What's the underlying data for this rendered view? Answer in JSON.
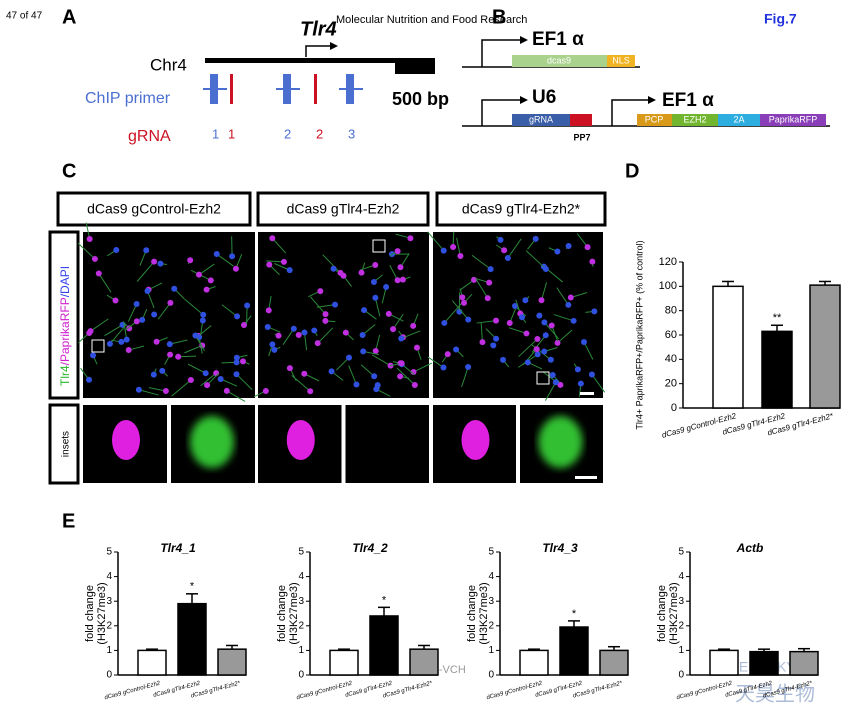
{
  "header": {
    "page": "47 of 47",
    "journal": "Molecular Nutrition and Food Research",
    "figure": "Fig.7"
  },
  "panel_a": {
    "letter": "A",
    "gene": "Tlr4",
    "chromosome": "Chr4",
    "primer_label": "ChIP primer",
    "grna_label": "gRNA",
    "scale": "500 bp",
    "numbers": [
      "1",
      "1",
      "2",
      "2",
      "3"
    ]
  },
  "panel_b": {
    "letter": "B",
    "promoter1": "EF1 α",
    "elements1": [
      "dcas9",
      "NLS"
    ],
    "promoter2": "U6",
    "elements2": [
      "gRNA",
      "PP7"
    ],
    "promoter3": "EF1 α",
    "elements3": [
      "PCP",
      "EZH2",
      "2A",
      "PaprikaRFP"
    ]
  },
  "panel_c": {
    "letter": "C",
    "conditions": [
      "dCas9 gControl-Ezh2",
      "dCas9 gTlr4-Ezh2",
      "dCas9 gTlr4-Ezh2*"
    ],
    "stain": [
      "Tlr4",
      "/PaprikaRFP",
      "/DAPI"
    ],
    "insets": "insets"
  },
  "panel_e": {
    "letter": "E"
  },
  "watermarks": [
    "Wiley-VCH",
    "GENESKY",
    "天昊生物"
  ],
  "chart_data": [
    {
      "type": "bar",
      "panel": "D",
      "ylabel": "Tlr4+ PaprikaRFP+/PaprikaRFP+ (% of control)",
      "categories": [
        "dCas9 gControl-Ezh2",
        "dCas9 gTlr4-Ezh2",
        "dCas9 gTlr4-Ezh2*"
      ],
      "values": [
        100,
        63,
        101
      ],
      "errors": [
        4,
        5,
        3
      ],
      "colors": [
        "#ffffff",
        "#000000",
        "#999999"
      ],
      "significance": [
        null,
        "**",
        null
      ],
      "ylim": [
        0,
        120
      ],
      "yticks": [
        0,
        20,
        40,
        60,
        80,
        100,
        120
      ]
    },
    {
      "type": "bar",
      "title": "Tlr4_1",
      "ylabel": [
        "fold change",
        "(H3K27me3)"
      ],
      "categories": [
        "dCas9 gControl-Ezh2",
        "dCas9 gTlr4-Ezh2",
        "dCas9 gTlr4-Ezh2*"
      ],
      "values": [
        1,
        2.9,
        1.05
      ],
      "errors": [
        0.05,
        0.4,
        0.15
      ],
      "colors": [
        "#ffffff",
        "#000000",
        "#999999"
      ],
      "significance": [
        null,
        "*",
        null
      ],
      "ylim": [
        0,
        5
      ],
      "yticks": [
        0,
        1,
        2,
        3,
        4,
        5
      ]
    },
    {
      "type": "bar",
      "title": "Tlr4_2",
      "ylabel": [
        "fold change",
        "(H3K27me3)"
      ],
      "categories": [
        "dCas9 gControl-Ezh2",
        "dCas9 gTlr4-Ezh2",
        "dCas9 gTlr4-Ezh2*"
      ],
      "values": [
        1,
        2.4,
        1.05
      ],
      "errors": [
        0.05,
        0.35,
        0.15
      ],
      "colors": [
        "#ffffff",
        "#000000",
        "#999999"
      ],
      "significance": [
        null,
        "*",
        null
      ],
      "ylim": [
        0,
        5
      ],
      "yticks": [
        0,
        1,
        2,
        3,
        4,
        5
      ]
    },
    {
      "type": "bar",
      "title": "Tlr4_3",
      "ylabel": [
        "fold change",
        "(H3K27me3)"
      ],
      "categories": [
        "dCas9 gControl-Ezh2",
        "dCas9 gTlr4-Ezh2",
        "dCas9 gTlr4-Ezh2*"
      ],
      "values": [
        1,
        1.95,
        1.0
      ],
      "errors": [
        0.05,
        0.25,
        0.15
      ],
      "colors": [
        "#ffffff",
        "#000000",
        "#999999"
      ],
      "significance": [
        null,
        "*",
        null
      ],
      "ylim": [
        0,
        5
      ],
      "yticks": [
        0,
        1,
        2,
        3,
        4,
        5
      ]
    },
    {
      "type": "bar",
      "title": "Actb",
      "ylabel": [
        "fold change",
        "(H3K27me3)"
      ],
      "categories": [
        "dCas9 gControl-Ezh2",
        "dCas9 gTlr4-Ezh2",
        "dCas9 gTlr4-Ezh2*"
      ],
      "values": [
        1,
        0.95,
        0.95
      ],
      "errors": [
        0.05,
        0.1,
        0.12
      ],
      "colors": [
        "#ffffff",
        "#000000",
        "#999999"
      ],
      "significance": [
        null,
        null,
        null
      ],
      "ylim": [
        0,
        5
      ],
      "yticks": [
        0,
        1,
        2,
        3,
        4,
        5
      ]
    }
  ]
}
